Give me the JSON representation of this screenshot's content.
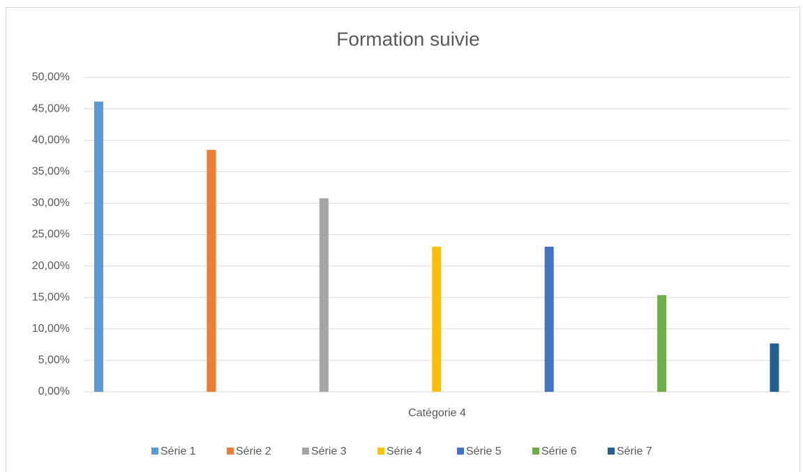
{
  "chart_data": {
    "type": "bar",
    "title": "Formation suivie",
    "categories": [
      "Catégorie 4"
    ],
    "series": [
      {
        "name": "Série 1",
        "color": "#5b9bd5",
        "values": [
          46.15
        ]
      },
      {
        "name": "Série 2",
        "color": "#ed7d31",
        "values": [
          38.46
        ]
      },
      {
        "name": "Série 3",
        "color": "#a5a5a5",
        "values": [
          30.77
        ]
      },
      {
        "name": "Série 4",
        "color": "#ffc000",
        "values": [
          23.08
        ]
      },
      {
        "name": "Série 5",
        "color": "#4472c4",
        "values": [
          23.08
        ]
      },
      {
        "name": "Série 6",
        "color": "#70ad47",
        "values": [
          15.38
        ]
      },
      {
        "name": "Série 7",
        "color": "#255e91",
        "values": [
          7.69
        ]
      }
    ],
    "ylim": [
      0,
      50
    ],
    "yticks": [
      {
        "value": 0,
        "label": "0,00%"
      },
      {
        "value": 5,
        "label": "5,00%"
      },
      {
        "value": 10,
        "label": "10,00%"
      },
      {
        "value": 15,
        "label": "15,00%"
      },
      {
        "value": 20,
        "label": "20,00%"
      },
      {
        "value": 25,
        "label": "25,00%"
      },
      {
        "value": 30,
        "label": "30,00%"
      },
      {
        "value": 35,
        "label": "35,00%"
      },
      {
        "value": 40,
        "label": "40,00%"
      },
      {
        "value": 45,
        "label": "45,00%"
      },
      {
        "value": 50,
        "label": "50,00%"
      }
    ],
    "grid": true,
    "legend": "bottom"
  }
}
